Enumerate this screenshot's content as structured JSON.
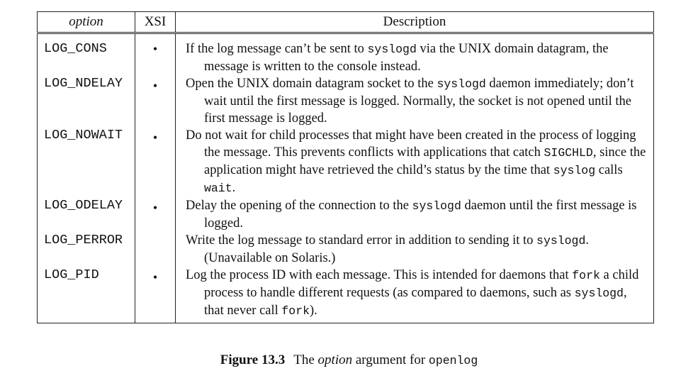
{
  "table": {
    "headers": {
      "option": "option",
      "xsi": "XSI",
      "description": "Description"
    },
    "rows": [
      {
        "name": "LOG_CONS",
        "xsi": "•",
        "desc": [
          {
            "t": "If the log message can’t be sent to "
          },
          {
            "t": "syslogd",
            "m": 1
          },
          {
            "t": " via the UNIX domain datagram, the message is written to the console instead."
          }
        ]
      },
      {
        "name": "LOG_NDELAY",
        "xsi": "•",
        "desc": [
          {
            "t": "Open the UNIX domain datagram socket to the "
          },
          {
            "t": "syslogd",
            "m": 1
          },
          {
            "t": " daemon immediately; don’t wait until the first message is logged.  Normally, the socket is not opened until the first message is logged."
          }
        ]
      },
      {
        "name": "LOG_NOWAIT",
        "xsi": "•",
        "desc": [
          {
            "t": "Do not wait for child processes that might have been created in the process of logging the message.  This prevents conflicts with applications that catch "
          },
          {
            "t": "SIGCHLD",
            "m": 1
          },
          {
            "t": ", since the application might have retrieved the child’s status by the time that "
          },
          {
            "t": "syslog",
            "m": 1
          },
          {
            "t": " calls "
          },
          {
            "t": "wait",
            "m": 1
          },
          {
            "t": "."
          }
        ]
      },
      {
        "name": "LOG_ODELAY",
        "xsi": "•",
        "desc": [
          {
            "t": "Delay the opening of the connection to the "
          },
          {
            "t": "syslogd",
            "m": 1
          },
          {
            "t": " daemon until the first message is logged."
          }
        ]
      },
      {
        "name": "LOG_PERROR",
        "xsi": "",
        "desc": [
          {
            "t": "Write the log message to standard error in addition to sending it to "
          },
          {
            "t": "syslogd",
            "m": 1
          },
          {
            "t": ". (Unavailable on Solaris.)"
          }
        ]
      },
      {
        "name": "LOG_PID",
        "xsi": "•",
        "desc": [
          {
            "t": "Log the process ID with each message.  This is intended for daemons that "
          },
          {
            "t": "fork",
            "m": 1
          },
          {
            "t": " a child process to handle different requests (as compared to daemons, such as "
          },
          {
            "t": "syslogd",
            "m": 1
          },
          {
            "t": ", that never call "
          },
          {
            "t": "fork",
            "m": 1
          },
          {
            "t": ")."
          }
        ]
      }
    ]
  },
  "caption": {
    "label": "Figure 13.3",
    "pre": "The ",
    "italic": "option",
    "mid": " argument for ",
    "code": "openlog"
  }
}
